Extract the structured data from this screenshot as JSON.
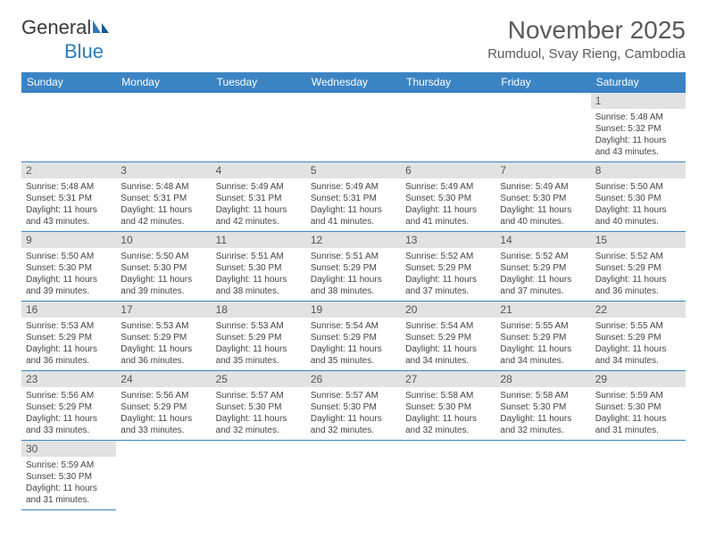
{
  "brand": {
    "name1": "General",
    "name2": "Blue"
  },
  "title": "November 2025",
  "location": "Rumduol, Svay Rieng, Cambodia",
  "colors": {
    "header_bg": "#3b84c4",
    "header_text": "#ffffff",
    "daynum_bg": "#e2e2e2",
    "cell_border": "#3b84c4",
    "brand_accent": "#2b7bbd",
    "text": "#444444"
  },
  "weekdays": [
    "Sunday",
    "Monday",
    "Tuesday",
    "Wednesday",
    "Thursday",
    "Friday",
    "Saturday"
  ],
  "first_weekday_index": 6,
  "days": [
    {
      "n": 1,
      "sunrise": "5:48 AM",
      "sunset": "5:32 PM",
      "daylight": "11 hours and 43 minutes."
    },
    {
      "n": 2,
      "sunrise": "5:48 AM",
      "sunset": "5:31 PM",
      "daylight": "11 hours and 43 minutes."
    },
    {
      "n": 3,
      "sunrise": "5:48 AM",
      "sunset": "5:31 PM",
      "daylight": "11 hours and 42 minutes."
    },
    {
      "n": 4,
      "sunrise": "5:49 AM",
      "sunset": "5:31 PM",
      "daylight": "11 hours and 42 minutes."
    },
    {
      "n": 5,
      "sunrise": "5:49 AM",
      "sunset": "5:31 PM",
      "daylight": "11 hours and 41 minutes."
    },
    {
      "n": 6,
      "sunrise": "5:49 AM",
      "sunset": "5:30 PM",
      "daylight": "11 hours and 41 minutes."
    },
    {
      "n": 7,
      "sunrise": "5:49 AM",
      "sunset": "5:30 PM",
      "daylight": "11 hours and 40 minutes."
    },
    {
      "n": 8,
      "sunrise": "5:50 AM",
      "sunset": "5:30 PM",
      "daylight": "11 hours and 40 minutes."
    },
    {
      "n": 9,
      "sunrise": "5:50 AM",
      "sunset": "5:30 PM",
      "daylight": "11 hours and 39 minutes."
    },
    {
      "n": 10,
      "sunrise": "5:50 AM",
      "sunset": "5:30 PM",
      "daylight": "11 hours and 39 minutes."
    },
    {
      "n": 11,
      "sunrise": "5:51 AM",
      "sunset": "5:30 PM",
      "daylight": "11 hours and 38 minutes."
    },
    {
      "n": 12,
      "sunrise": "5:51 AM",
      "sunset": "5:29 PM",
      "daylight": "11 hours and 38 minutes."
    },
    {
      "n": 13,
      "sunrise": "5:52 AM",
      "sunset": "5:29 PM",
      "daylight": "11 hours and 37 minutes."
    },
    {
      "n": 14,
      "sunrise": "5:52 AM",
      "sunset": "5:29 PM",
      "daylight": "11 hours and 37 minutes."
    },
    {
      "n": 15,
      "sunrise": "5:52 AM",
      "sunset": "5:29 PM",
      "daylight": "11 hours and 36 minutes."
    },
    {
      "n": 16,
      "sunrise": "5:53 AM",
      "sunset": "5:29 PM",
      "daylight": "11 hours and 36 minutes."
    },
    {
      "n": 17,
      "sunrise": "5:53 AM",
      "sunset": "5:29 PM",
      "daylight": "11 hours and 36 minutes."
    },
    {
      "n": 18,
      "sunrise": "5:53 AM",
      "sunset": "5:29 PM",
      "daylight": "11 hours and 35 minutes."
    },
    {
      "n": 19,
      "sunrise": "5:54 AM",
      "sunset": "5:29 PM",
      "daylight": "11 hours and 35 minutes."
    },
    {
      "n": 20,
      "sunrise": "5:54 AM",
      "sunset": "5:29 PM",
      "daylight": "11 hours and 34 minutes."
    },
    {
      "n": 21,
      "sunrise": "5:55 AM",
      "sunset": "5:29 PM",
      "daylight": "11 hours and 34 minutes."
    },
    {
      "n": 22,
      "sunrise": "5:55 AM",
      "sunset": "5:29 PM",
      "daylight": "11 hours and 34 minutes."
    },
    {
      "n": 23,
      "sunrise": "5:56 AM",
      "sunset": "5:29 PM",
      "daylight": "11 hours and 33 minutes."
    },
    {
      "n": 24,
      "sunrise": "5:56 AM",
      "sunset": "5:29 PM",
      "daylight": "11 hours and 33 minutes."
    },
    {
      "n": 25,
      "sunrise": "5:57 AM",
      "sunset": "5:30 PM",
      "daylight": "11 hours and 32 minutes."
    },
    {
      "n": 26,
      "sunrise": "5:57 AM",
      "sunset": "5:30 PM",
      "daylight": "11 hours and 32 minutes."
    },
    {
      "n": 27,
      "sunrise": "5:58 AM",
      "sunset": "5:30 PM",
      "daylight": "11 hours and 32 minutes."
    },
    {
      "n": 28,
      "sunrise": "5:58 AM",
      "sunset": "5:30 PM",
      "daylight": "11 hours and 32 minutes."
    },
    {
      "n": 29,
      "sunrise": "5:59 AM",
      "sunset": "5:30 PM",
      "daylight": "11 hours and 31 minutes."
    },
    {
      "n": 30,
      "sunrise": "5:59 AM",
      "sunset": "5:30 PM",
      "daylight": "11 hours and 31 minutes."
    }
  ]
}
